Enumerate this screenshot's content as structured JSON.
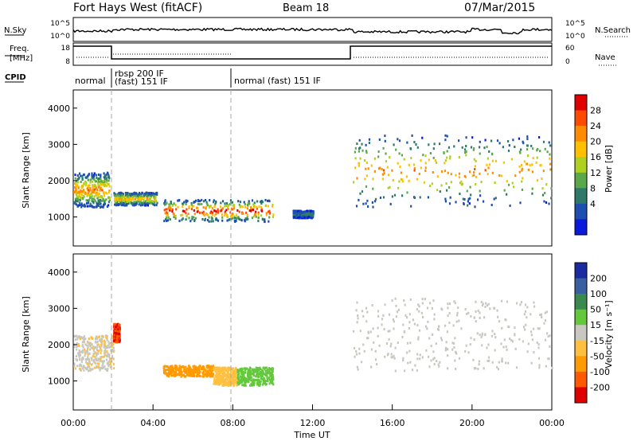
{
  "header": {
    "station": "Fort Hays West (fitACF)",
    "beam": "Beam 18",
    "date": "07/Mar/2015"
  },
  "side_labels": {
    "nsky": "N.Sky",
    "nsearch": "N.Search",
    "freq_line1": "Freq.",
    "freq_line2": "[MHz]",
    "nave": "Nave",
    "cpid": "CPID"
  },
  "noise_panel": {
    "left_ticks": [
      "10^5",
      "10^0"
    ],
    "right_ticks": [
      "10^5",
      "10^0"
    ]
  },
  "freq_panel": {
    "left_ticks": [
      "18",
      "8"
    ],
    "right_ticks": [
      "60",
      "0"
    ]
  },
  "cpid_segments": [
    {
      "start_h": 0.0,
      "end_h": 2.0,
      "label": "normal"
    },
    {
      "start_h": 2.0,
      "end_h": 8.0,
      "label": "rbsp 200 IF",
      "label2": "(fast) 151 IF"
    },
    {
      "start_h": 8.0,
      "end_h": 24.0,
      "label": "normal (fast) 151 IF"
    }
  ],
  "power_colorbar": {
    "title": "Power [dB]",
    "ticks": [
      "28",
      "24",
      "20",
      "16",
      "12",
      "8",
      "4"
    ],
    "colors": [
      "#e00000",
      "#ff4a00",
      "#ff8c00",
      "#ffc000",
      "#b0d020",
      "#5aa84a",
      "#2e7a6a",
      "#1d4fb0",
      "#0a1adc"
    ]
  },
  "velocity_colorbar": {
    "title": "Velocity [m s⁻¹]",
    "ticks": [
      "200",
      "100",
      "50",
      "15",
      "-15",
      "-50",
      "-100",
      "-200"
    ],
    "colors": [
      "#1a2aa0",
      "#3a5fa0",
      "#3a8a50",
      "#64c83c",
      "#c8c8c0",
      "#ffc040",
      "#ff9a00",
      "#ff5a00",
      "#e00000"
    ]
  },
  "chart_data": [
    {
      "type": "heatmap",
      "panel": "power",
      "ylabel": "Slant Range [km]",
      "y_ticks": [
        "1000",
        "2000",
        "3000",
        "4000"
      ],
      "ylim": [
        200,
        4500
      ],
      "xlim": [
        0,
        24
      ],
      "echo_regions": [
        {
          "t0": 0.0,
          "t1": 1.8,
          "r_lo": 1300,
          "r_hi": 2250,
          "peak_power_db": 22
        },
        {
          "t0": 2.0,
          "t1": 4.2,
          "r_lo": 1350,
          "r_hi": 1700,
          "peak_power_db": 20
        },
        {
          "t0": 4.5,
          "t1": 10.0,
          "r_lo": 900,
          "r_hi": 1500,
          "peak_power_db": 28
        },
        {
          "t0": 11.0,
          "t1": 12.0,
          "r_lo": 1000,
          "r_hi": 1200,
          "peak_power_db": 8
        },
        {
          "t0": 14.0,
          "t1": 24.0,
          "r_lo": 1300,
          "r_hi": 3300,
          "peak_power_db": 22
        }
      ]
    },
    {
      "type": "heatmap",
      "panel": "velocity",
      "ylabel": "Slant Range [km]",
      "y_ticks": [
        "1000",
        "2000",
        "3000",
        "4000"
      ],
      "ylim": [
        200,
        4500
      ],
      "xlim": [
        0,
        24
      ],
      "x_ticks": [
        "00:00",
        "04:00",
        "08:00",
        "12:00",
        "16:00",
        "20:00",
        "00:00"
      ],
      "xlabel": "Time UT",
      "echo_regions": [
        {
          "t0": 0.0,
          "t1": 2.0,
          "r_lo": 1300,
          "r_hi": 2300,
          "velocity_ms": -10
        },
        {
          "t0": 2.0,
          "t1": 2.3,
          "r_lo": 2100,
          "r_hi": 2600,
          "velocity_ms": -200
        },
        {
          "t0": 4.5,
          "t1": 7.0,
          "r_lo": 1150,
          "r_hi": 1450,
          "velocity_ms": -80
        },
        {
          "t0": 7.0,
          "t1": 8.2,
          "r_lo": 900,
          "r_hi": 1400,
          "velocity_ms": -40
        },
        {
          "t0": 8.2,
          "t1": 10.0,
          "r_lo": 900,
          "r_hi": 1400,
          "velocity_ms": 40
        },
        {
          "t0": 14.0,
          "t1": 24.0,
          "r_lo": 1300,
          "r_hi": 3300,
          "velocity_ms": -5
        }
      ]
    }
  ]
}
